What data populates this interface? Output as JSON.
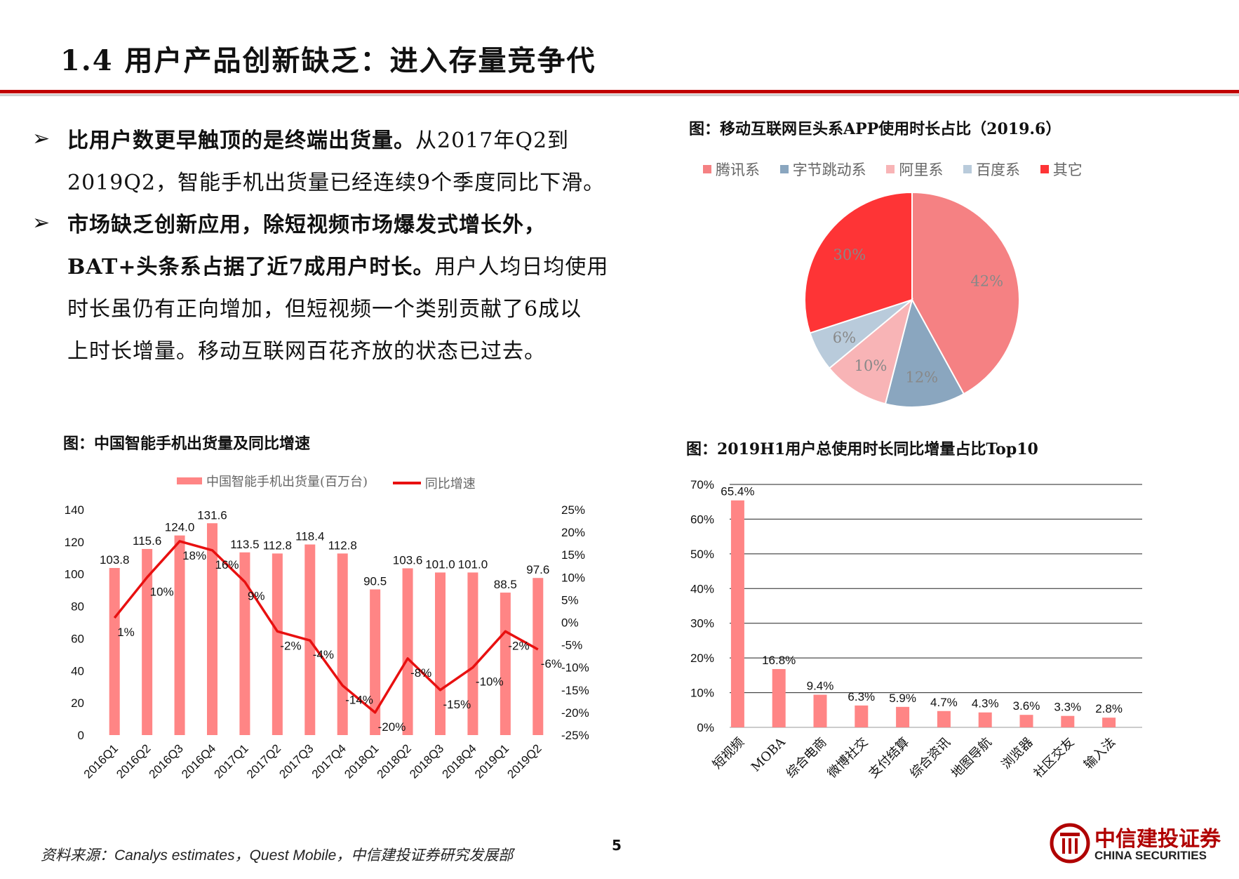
{
  "header": {
    "title": "1.4 用户产品创新缺乏：进入存量竞争代"
  },
  "bullets": [
    {
      "bold_lead": "比用户数更早触顶的是终端出货量。",
      "line1_rest": "从2017年Q2到",
      "line2": "2019Q2，智能手机出货量已经连续9个季度同比下滑。"
    },
    {
      "line1_bold": "市场缺乏创新应用，除短视频市场爆发式增长外，",
      "line2_bold": "BAT+头条系占据了近7成用户时长。",
      "line2_rest": "用户人均日均使用",
      "line3": "时长虽仍有正向增加，但短视频一个类别贡献了6成以",
      "line4": "上时长增量。移动互联网百花齐放的状态已过去。"
    }
  ],
  "footer": {
    "source_prefix": "资料来源：",
    "source_en": "Canalys estimates，Quest Mobile，",
    "source_suffix": "中信建投证券研究发展部",
    "page_number": "5",
    "logo_cn": "中信建投证券",
    "logo_en": "CHINA SECURITIES"
  },
  "chart_data": [
    {
      "id": "pie",
      "type": "pie",
      "title": "图：移动互联网巨头系APP使用时长占比（2019.6）",
      "labels": [
        "腾讯系",
        "字节跳动系",
        "阿里系",
        "百度系",
        "其它"
      ],
      "values": [
        42,
        12,
        10,
        6,
        30
      ],
      "data_labels": [
        "42%",
        "12%",
        "10%",
        "6%",
        "30%"
      ],
      "colors": [
        "#f58183",
        "#8aa6bf",
        "#f8b4b6",
        "#b9cbdb",
        "#fe3436"
      ],
      "legend_position": "top"
    },
    {
      "id": "combo",
      "type": "bar",
      "title": "图：中国智能手机出货量及同比增速",
      "categories": [
        "2016Q1",
        "2016Q2",
        "2016Q3",
        "2016Q4",
        "2017Q1",
        "2017Q2",
        "2017Q3",
        "2017Q4",
        "2018Q1",
        "2018Q2",
        "2018Q3",
        "2018Q4",
        "2019Q1",
        "2019Q2"
      ],
      "series": [
        {
          "name": "中国智能手机出货量(百万台)",
          "type": "bar",
          "axis": "left",
          "color": "#ff8585",
          "values": [
            103.8,
            115.6,
            124.0,
            131.6,
            113.5,
            112.8,
            118.4,
            112.8,
            90.5,
            103.6,
            101.0,
            101.0,
            88.5,
            97.6
          ],
          "labels": [
            "103.8",
            "115.6",
            "124.0",
            "131.6",
            "113.5",
            "112.8",
            "118.4",
            "112.8",
            "90.5",
            "103.6",
            "101.0",
            "101.0",
            "88.5",
            "97.6"
          ]
        },
        {
          "name": "同比增速",
          "type": "line",
          "axis": "right",
          "color": "#e81010",
          "values": [
            1,
            10,
            18,
            16,
            9,
            -2,
            -4,
            -14,
            -20,
            -8,
            -15,
            -10,
            -2,
            -6
          ],
          "labels": [
            "1%",
            "10%",
            "18%",
            "16%",
            "9%",
            "-2%",
            "-4%",
            "-14%",
            "-20%",
            "-8%",
            "-15%",
            "-10%",
            "-2%",
            "-6%"
          ]
        }
      ],
      "y_left": {
        "range": [
          0,
          140
        ],
        "ticks": [
          "0",
          "20",
          "40",
          "60",
          "80",
          "100",
          "120",
          "140"
        ],
        "tick_values": [
          0,
          20,
          40,
          60,
          80,
          100,
          120,
          140
        ]
      },
      "y_right": {
        "range": [
          -25,
          25
        ],
        "ticks": [
          "-25%",
          "-20%",
          "-15%",
          "-10%",
          "-5%",
          "0%",
          "5%",
          "10%",
          "15%",
          "20%",
          "25%"
        ],
        "tick_values": [
          -25,
          -20,
          -15,
          -10,
          -5,
          0,
          5,
          10,
          15,
          20,
          25
        ]
      },
      "grid": false,
      "legend_position": "top"
    },
    {
      "id": "top10",
      "type": "bar",
      "title": "图：2019H1用户总使用时长同比增量占比Top10",
      "categories": [
        "短视频",
        "MOBA",
        "综合电商",
        "微博社交",
        "支付结算",
        "综合资讯",
        "地图导航",
        "浏览器",
        "社区交友",
        "输入法"
      ],
      "values": [
        65.4,
        16.8,
        9.4,
        6.3,
        5.9,
        4.7,
        4.3,
        3.6,
        3.3,
        2.8
      ],
      "labels": [
        "65.4%",
        "16.8%",
        "9.4%",
        "6.3%",
        "5.9%",
        "4.7%",
        "4.3%",
        "3.6%",
        "3.3%",
        "2.8%"
      ],
      "color": "#ff8585",
      "y": {
        "range": [
          0,
          70
        ],
        "ticks": [
          "0%",
          "10%",
          "20%",
          "30%",
          "40%",
          "50%",
          "60%",
          "70%"
        ],
        "tick_values": [
          0,
          10,
          20,
          30,
          40,
          50,
          60,
          70
        ]
      },
      "grid": true
    }
  ]
}
